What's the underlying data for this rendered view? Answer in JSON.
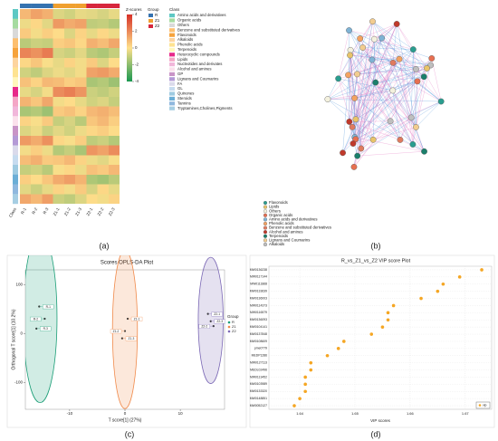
{
  "captions": [
    "(a)",
    "(b)",
    "(c)",
    "(d)"
  ],
  "chart_data": [
    {
      "type": "heatmap",
      "x_labels": [
        "Class",
        "R-1",
        "R-2",
        "R-3",
        "Z1-1",
        "Z1-2",
        "Z1-3",
        "Z2-1",
        "Z2-2",
        "Z2-3"
      ],
      "values": [
        [
          0.9,
          1.4,
          1.1,
          -0.6,
          -0.8,
          -0.4,
          -0.5,
          -0.7,
          -0.4
        ],
        [
          -0.3,
          0.2,
          -0.5,
          1.6,
          1.2,
          1.4,
          -1.1,
          -1.0,
          -1.3
        ],
        [
          0.5,
          -0.2,
          0.4,
          0.1,
          -0.6,
          0.3,
          -0.4,
          0.2,
          -0.3
        ],
        [
          -1.2,
          -0.9,
          -1.0,
          0.4,
          0.6,
          0.2,
          1.1,
          0.8,
          1.3
        ],
        [
          2.1,
          1.8,
          2.3,
          -0.7,
          -0.9,
          -0.5,
          -1.2,
          -1.4,
          -1.0
        ],
        [
          0.2,
          0.6,
          -0.1,
          -0.4,
          0.3,
          -0.2,
          0.5,
          -0.6,
          0.1
        ],
        [
          -0.8,
          -1.1,
          -0.6,
          -0.3,
          -0.5,
          -0.2,
          1.4,
          1.6,
          1.2
        ],
        [
          0.7,
          0.3,
          0.9,
          0.8,
          0.4,
          0.6,
          -1.5,
          -1.3,
          -1.7
        ],
        [
          -0.4,
          -0.7,
          -0.2,
          1.9,
          2.2,
          1.7,
          -0.9,
          -1.1,
          -0.8
        ],
        [
          1.0,
          0.6,
          1.3,
          -0.2,
          0.1,
          -0.4,
          -0.8,
          -0.6,
          -1.0
        ],
        [
          -1.5,
          -1.3,
          -1.7,
          0.5,
          0.7,
          0.3,
          0.9,
          1.1,
          0.8
        ],
        [
          0.3,
          -0.1,
          0.5,
          -1.0,
          -0.7,
          -1.2,
          0.6,
          0.9,
          0.4
        ],
        [
          -0.6,
          -0.3,
          -0.9,
          -0.5,
          -0.8,
          -0.3,
          0.2,
          0.4,
          0.1
        ],
        [
          1.6,
          1.2,
          1.8,
          0.2,
          -0.1,
          0.4,
          -1.1,
          -0.9,
          -1.3
        ],
        [
          -0.2,
          0.4,
          -0.3,
          -1.3,
          -1.0,
          -1.5,
          1.7,
          1.4,
          1.9
        ],
        [
          0.8,
          1.1,
          0.5,
          0.6,
          0.9,
          0.3,
          -0.3,
          -0.5,
          -0.1
        ],
        [
          -1.0,
          -0.8,
          -1.2,
          -0.1,
          0.2,
          -0.3,
          0.7,
          0.5,
          0.9
        ],
        [
          0.4,
          0.1,
          0.6,
          1.2,
          1.5,
          1.0,
          -1.4,
          -1.6,
          -1.2
        ],
        [
          -0.5,
          -0.9,
          -0.4,
          0.3,
          -0.2,
          0.5,
          -0.7,
          0.2,
          -0.4
        ],
        [
          1.3,
          0.9,
          1.5,
          -0.9,
          -1.1,
          -0.6,
          0.1,
          -0.2,
          0.3
        ]
      ],
      "zscore_title": "Z-scores",
      "zlim": [
        -4,
        4
      ],
      "zticks": [
        4,
        2,
        0,
        -2,
        -4
      ],
      "colors": [
        "#1a9850",
        "#fee08b",
        "#d73027"
      ],
      "group_title": "Group",
      "groups": [
        {
          "name": "R",
          "color": "#3572b0"
        },
        {
          "name": "Z1",
          "color": "#f0a030"
        },
        {
          "name": "Z2",
          "color": "#d7263d"
        }
      ],
      "class_title": "Class",
      "classes": [
        {
          "name": "Amino acids and derivatives",
          "color": "#5ec8c4"
        },
        {
          "name": "Organic acids",
          "color": "#a6dba0"
        },
        {
          "name": "Others",
          "color": "#d9d9d9"
        },
        {
          "name": "Benzene and substituted derivatives",
          "color": "#fdbf6f"
        },
        {
          "name": "Flavonoids",
          "color": "#f6a33c"
        },
        {
          "name": "Alkaloids",
          "color": "#fdd49e"
        },
        {
          "name": "Phenolic acids",
          "color": "#fee391"
        },
        {
          "name": "Terpenoids",
          "color": "#fff7bc"
        },
        {
          "name": "Heterocyclic compounds",
          "color": "#e7298a"
        },
        {
          "name": "Lipids",
          "color": "#f4a6c6"
        },
        {
          "name": "Nucleotides and derivates",
          "color": "#f1b6da"
        },
        {
          "name": "Alcohol and amines",
          "color": "#fbe1ec"
        },
        {
          "name": "GP",
          "color": "#c994c7"
        },
        {
          "name": "Lignans and Coumarins",
          "color": "#b49ad6"
        },
        {
          "name": "FA",
          "color": "#dadaeb"
        },
        {
          "name": "GL",
          "color": "#c6dbef"
        },
        {
          "name": "Quinones",
          "color": "#9ecae1"
        },
        {
          "name": "Steroids",
          "color": "#6baed6"
        },
        {
          "name": "Tannins",
          "color": "#8fb8de"
        },
        {
          "name": "Tryptamines,Cholines,Pigments",
          "color": "#a6cee3"
        }
      ]
    },
    {
      "type": "network",
      "legend": [
        {
          "name": "Flavonoids",
          "color": "#2a9d8f"
        },
        {
          "name": "Lipids",
          "color": "#e9c46a"
        },
        {
          "name": "Others",
          "color": "#f4f1de"
        },
        {
          "name": "Organic acids",
          "color": "#e76f51"
        },
        {
          "name": "Amino acids and derivatives",
          "color": "#7fb3d5"
        },
        {
          "name": "Phenolic acids",
          "color": "#f4a261"
        },
        {
          "name": "Benzene and substituted derivatives",
          "color": "#e07a5f"
        },
        {
          "name": "Alcohol and amines",
          "color": "#c0392b"
        },
        {
          "name": "Terpenoids",
          "color": "#1b7f6b"
        },
        {
          "name": "Lignans and Coumarins",
          "color": "#f2cc8f"
        },
        {
          "name": "Alkaloids",
          "color": "#bfbfbf"
        }
      ]
    },
    {
      "type": "scatter",
      "title": "Scores OPLS-DA Plot",
      "xlabel": "T score[1] (27%)",
      "ylabel": "Orthogonal T score[1] (10.2%)",
      "xlim": [
        -18,
        18
      ],
      "xticks": [
        -10,
        0,
        10
      ],
      "ylim": [
        -155,
        130
      ],
      "yticks": [
        -100,
        0,
        100
      ],
      "legend_title": "Group",
      "series": [
        {
          "name": "R",
          "color": "#1b9e77",
          "x": [
            -15.5,
            -14.5,
            -16
          ],
          "y": [
            55,
            30,
            10
          ],
          "labels": [
            "R-1",
            "R-2",
            "R-3"
          ]
        },
        {
          "name": "Z1",
          "color": "#f08a4b",
          "x": [
            0.5,
            0,
            -0.5
          ],
          "y": [
            30,
            5,
            -10
          ],
          "labels": [
            "Z1-1",
            "Z1-2",
            "Z1-3"
          ]
        },
        {
          "name": "Z2",
          "color": "#7b68b5",
          "x": [
            15,
            16,
            15.5
          ],
          "y": [
            40,
            15,
            25
          ],
          "labels": [
            "Z2-1",
            "Z2-2",
            "Z2-3"
          ]
        }
      ]
    },
    {
      "type": "dot",
      "title": "R_vs_Z1_vs_Z2 VIP score Plot",
      "xlabel": "VIP scores",
      "categories": [
        "MW0136238",
        "MW0117144",
        "MW0111868",
        "MW0133639",
        "MW0136003",
        "MW0114373",
        "MW0116579",
        "MW0136093",
        "MW0104141",
        "MW0137848",
        "MW0108609",
        "pme0779",
        "MEDP1286",
        "MW0127113",
        "MEDL02496",
        "MW0113452",
        "MW0103989",
        "MW0133320",
        "MW0148851",
        "MW0052127"
      ],
      "values": [
        1.673,
        1.669,
        1.666,
        1.665,
        1.662,
        1.657,
        1.656,
        1.656,
        1.655,
        1.653,
        1.648,
        1.647,
        1.645,
        1.642,
        1.642,
        1.641,
        1.641,
        1.641,
        1.64,
        1.639
      ],
      "xlim": [
        1.6344,
        1.6748
      ],
      "xticks": [
        1.64,
        1.65,
        1.66,
        1.67
      ],
      "legend": "vip",
      "color": "#f5a623"
    }
  ]
}
